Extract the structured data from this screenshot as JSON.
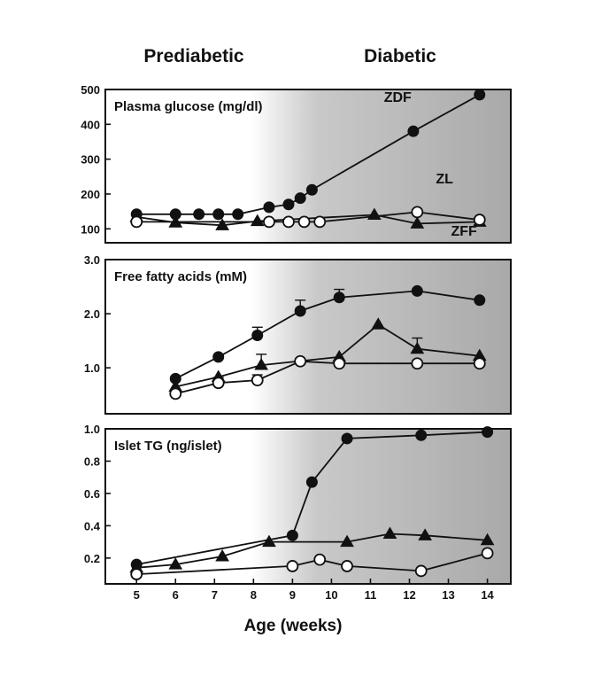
{
  "header": {
    "prediabetic": "Prediabetic",
    "diabetic": "Diabetic"
  },
  "chart_data": {
    "type": "line",
    "xlabel": "Age (weeks)",
    "x_ticks": [
      5,
      6,
      7,
      8,
      9,
      10,
      11,
      12,
      13,
      14
    ],
    "xlim": [
      4.2,
      14.6
    ],
    "background": {
      "type": "gradient",
      "shaded_from_x": 9,
      "color": "#a9a9a9"
    },
    "panels": [
      {
        "title": "Plasma glucose (mg/dl)",
        "ylim": [
          60,
          500
        ],
        "y_ticks": [
          100,
          200,
          300,
          400,
          500
        ],
        "tick_decimals": 0,
        "annotations": [
          {
            "text": "ZDF",
            "x": 11.7,
            "y": 465
          },
          {
            "text": "ZL",
            "x": 12.9,
            "y": 230
          },
          {
            "text": "ZFF",
            "x": 13.4,
            "y": 80
          }
        ],
        "series": [
          {
            "name": "ZDF",
            "marker": "filled-circle",
            "x": [
              5,
              6,
              6.6,
              7.1,
              7.6,
              8.4,
              8.9,
              9.2,
              9.5,
              12.1,
              13.8
            ],
            "y": [
              142,
              142,
              142,
              142,
              142,
              162,
              170,
              188,
              212,
              380,
              485
            ]
          },
          {
            "name": "ZL",
            "marker": "filled-triangle",
            "x": [
              5,
              6,
              7.2,
              8.1,
              11.1,
              12.2,
              13.8
            ],
            "y": [
              134,
              118,
              110,
              122,
              140,
              115,
              120
            ]
          },
          {
            "name": "ZFF",
            "marker": "open-circle",
            "x": [
              5,
              8.4,
              8.9,
              9.3,
              9.7,
              12.2,
              13.8
            ],
            "y": [
              120,
              120,
              120,
              120,
              120,
              148,
              126
            ]
          }
        ]
      },
      {
        "title": "Free fatty acids (mM)",
        "ylim": [
          0.15,
          3.0
        ],
        "y_ticks": [
          1.0,
          2.0,
          3.0
        ],
        "tick_decimals": 1,
        "annotations": [],
        "series": [
          {
            "name": "ZDF",
            "marker": "filled-circle",
            "x": [
              6,
              7.1,
              8.1,
              9.2,
              10.2,
              12.2,
              13.8
            ],
            "y": [
              0.8,
              1.2,
              1.6,
              2.05,
              2.3,
              2.42,
              2.25
            ],
            "err": [
              0,
              0,
              0.15,
              0.2,
              0.15,
              0,
              0
            ]
          },
          {
            "name": "ZL",
            "marker": "filled-triangle",
            "x": [
              6,
              7.1,
              8.2,
              10.2,
              11.2,
              12.2,
              13.8
            ],
            "y": [
              0.65,
              0.83,
              1.05,
              1.2,
              1.8,
              1.35,
              1.22
            ],
            "err": [
              0,
              0,
              0.2,
              0,
              0,
              0.2,
              0
            ]
          },
          {
            "name": "ZFF",
            "marker": "open-circle",
            "x": [
              6,
              7.1,
              8.1,
              9.2,
              10.2,
              12.2,
              13.8
            ],
            "y": [
              0.52,
              0.72,
              0.77,
              1.12,
              1.08,
              1.08,
              1.08
            ],
            "err": [
              0,
              0.1,
              0.1,
              0,
              0,
              0,
              0
            ]
          }
        ]
      },
      {
        "title": "Islet TG (ng/islet)",
        "ylim": [
          0.04,
          1.0
        ],
        "y_ticks": [
          0.2,
          0.4,
          0.6,
          0.8,
          1.0
        ],
        "tick_decimals": 1,
        "annotations": [],
        "series": [
          {
            "name": "ZDF",
            "marker": "filled-circle",
            "x": [
              5,
              9,
              9.5,
              10.4,
              12.3,
              14
            ],
            "y": [
              0.16,
              0.34,
              0.67,
              0.94,
              0.96,
              0.98
            ]
          },
          {
            "name": "ZL",
            "marker": "filled-triangle",
            "x": [
              5,
              6,
              7.2,
              8.4,
              10.4,
              11.5,
              12.4,
              14
            ],
            "y": [
              0.14,
              0.16,
              0.21,
              0.3,
              0.3,
              0.35,
              0.34,
              0.31
            ]
          },
          {
            "name": "ZFF",
            "marker": "open-circle",
            "x": [
              5,
              9,
              9.7,
              10.4,
              12.3,
              14
            ],
            "y": [
              0.1,
              0.15,
              0.19,
              0.15,
              0.12,
              0.23
            ]
          }
        ]
      }
    ]
  }
}
